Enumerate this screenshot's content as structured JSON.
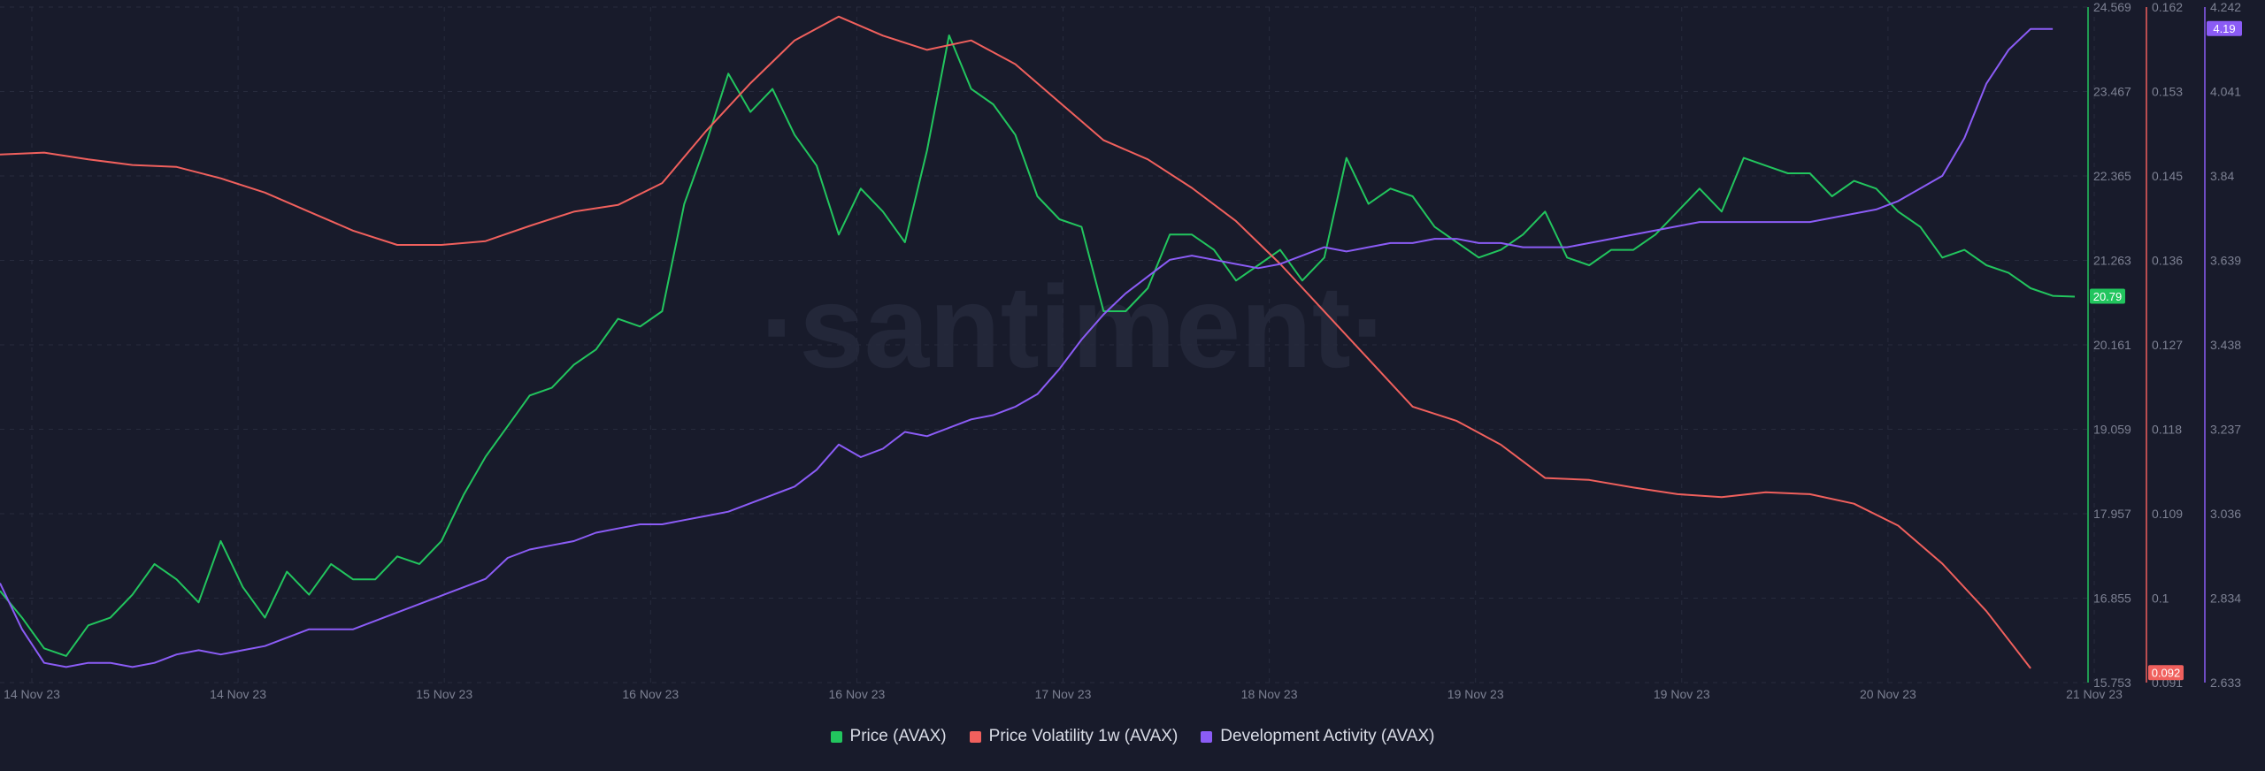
{
  "watermark": "·santiment·",
  "colors": {
    "background": "#181b2b",
    "grid": "#272b3d",
    "price": "#22c55e",
    "volatility": "#f0605d",
    "dev_activity": "#8b5cf6",
    "tick_text": "#7c8092"
  },
  "chart_data": {
    "type": "line",
    "grid": true,
    "legend_position": "bottom-center",
    "x_axis": {
      "ticks": [
        "14 Nov 23",
        "14 Nov 23",
        "15 Nov 23",
        "16 Nov 23",
        "16 Nov 23",
        "17 Nov 23",
        "18 Nov 23",
        "19 Nov 23",
        "19 Nov 23",
        "20 Nov 23",
        "21 Nov 23"
      ]
    },
    "axes": {
      "price": {
        "ticks": [
          "24.569",
          "23.467",
          "22.365",
          "21.263",
          "20.161",
          "19.059",
          "17.957",
          "16.855",
          "15.753"
        ],
        "range": [
          15.753,
          24.569
        ],
        "current_label": "20.79"
      },
      "volatility": {
        "ticks": [
          "0.162",
          "0.153",
          "0.145",
          "0.136",
          "0.127",
          "0.118",
          "0.109",
          "0.1",
          "0.091"
        ],
        "range": [
          0.091,
          0.162
        ],
        "current_label": "0.092"
      },
      "dev_activity": {
        "ticks": [
          "4.242",
          "4.041",
          "3.84",
          "3.639",
          "3.438",
          "3.237",
          "3.036",
          "2.834",
          "2.633"
        ],
        "range": [
          2.633,
          4.242
        ],
        "current_label": "4.19"
      }
    },
    "series": [
      {
        "name": "Price (AVAX)",
        "axis": "price",
        "color": "#22c55e",
        "points": [
          [
            0,
            16.95
          ],
          [
            1,
            16.6
          ],
          [
            2,
            16.2
          ],
          [
            3,
            16.1
          ],
          [
            4,
            16.5
          ],
          [
            5,
            16.6
          ],
          [
            6,
            16.9
          ],
          [
            7,
            17.3
          ],
          [
            8,
            17.1
          ],
          [
            9,
            16.8
          ],
          [
            10,
            17.6
          ],
          [
            11,
            17.0
          ],
          [
            12,
            16.6
          ],
          [
            13,
            17.2
          ],
          [
            14,
            16.9
          ],
          [
            15,
            17.3
          ],
          [
            16,
            17.1
          ],
          [
            17,
            17.1
          ],
          [
            18,
            17.4
          ],
          [
            19,
            17.3
          ],
          [
            20,
            17.6
          ],
          [
            21,
            18.2
          ],
          [
            22,
            18.7
          ],
          [
            23,
            19.1
          ],
          [
            24,
            19.5
          ],
          [
            25,
            19.6
          ],
          [
            26,
            19.9
          ],
          [
            27,
            20.1
          ],
          [
            28,
            20.5
          ],
          [
            29,
            20.4
          ],
          [
            30,
            20.6
          ],
          [
            31,
            22.0
          ],
          [
            32,
            22.8
          ],
          [
            33,
            23.7
          ],
          [
            34,
            23.2
          ],
          [
            35,
            23.5
          ],
          [
            36,
            22.9
          ],
          [
            37,
            22.5
          ],
          [
            38,
            21.6
          ],
          [
            39,
            22.2
          ],
          [
            40,
            21.9
          ],
          [
            41,
            21.5
          ],
          [
            42,
            22.7
          ],
          [
            43,
            24.2
          ],
          [
            44,
            23.5
          ],
          [
            45,
            23.3
          ],
          [
            46,
            22.9
          ],
          [
            47,
            22.1
          ],
          [
            48,
            21.8
          ],
          [
            49,
            21.7
          ],
          [
            50,
            20.6
          ],
          [
            51,
            20.6
          ],
          [
            52,
            20.9
          ],
          [
            53,
            21.6
          ],
          [
            54,
            21.6
          ],
          [
            55,
            21.4
          ],
          [
            56,
            21.0
          ],
          [
            57,
            21.2
          ],
          [
            58,
            21.4
          ],
          [
            59,
            21.0
          ],
          [
            60,
            21.3
          ],
          [
            61,
            22.6
          ],
          [
            62,
            22.0
          ],
          [
            63,
            22.2
          ],
          [
            64,
            22.1
          ],
          [
            65,
            21.7
          ],
          [
            66,
            21.5
          ],
          [
            67,
            21.3
          ],
          [
            68,
            21.4
          ],
          [
            69,
            21.6
          ],
          [
            70,
            21.9
          ],
          [
            71,
            21.3
          ],
          [
            72,
            21.2
          ],
          [
            73,
            21.4
          ],
          [
            74,
            21.4
          ],
          [
            75,
            21.6
          ],
          [
            76,
            21.9
          ],
          [
            77,
            22.2
          ],
          [
            78,
            21.9
          ],
          [
            79,
            22.6
          ],
          [
            80,
            22.5
          ],
          [
            81,
            22.4
          ],
          [
            82,
            22.4
          ],
          [
            83,
            22.1
          ],
          [
            84,
            22.3
          ],
          [
            85,
            22.2
          ],
          [
            86,
            21.9
          ],
          [
            87,
            21.7
          ],
          [
            88,
            21.3
          ],
          [
            89,
            21.4
          ],
          [
            90,
            21.2
          ],
          [
            91,
            21.1
          ],
          [
            92,
            20.9
          ],
          [
            93,
            20.8
          ],
          [
            94,
            20.79
          ]
        ]
      },
      {
        "name": "Price Volatility 1w (AVAX)",
        "axis": "volatility",
        "color": "#f0605d",
        "points": [
          [
            0,
            0.1465
          ],
          [
            2,
            0.1467
          ],
          [
            4,
            0.146
          ],
          [
            6,
            0.1454
          ],
          [
            8,
            0.1452
          ],
          [
            10,
            0.144
          ],
          [
            12,
            0.1425
          ],
          [
            14,
            0.1405
          ],
          [
            16,
            0.1385
          ],
          [
            18,
            0.137
          ],
          [
            20,
            0.137
          ],
          [
            22,
            0.1374
          ],
          [
            24,
            0.139
          ],
          [
            26,
            0.1405
          ],
          [
            28,
            0.1412
          ],
          [
            30,
            0.1435
          ],
          [
            32,
            0.149
          ],
          [
            34,
            0.154
          ],
          [
            36,
            0.1585
          ],
          [
            38,
            0.161
          ],
          [
            40,
            0.159
          ],
          [
            42,
            0.1575
          ],
          [
            44,
            0.1585
          ],
          [
            46,
            0.156
          ],
          [
            48,
            0.152
          ],
          [
            50,
            0.148
          ],
          [
            52,
            0.146
          ],
          [
            54,
            0.143
          ],
          [
            56,
            0.1395
          ],
          [
            58,
            0.135
          ],
          [
            60,
            0.13
          ],
          [
            62,
            0.125
          ],
          [
            64,
            0.12
          ],
          [
            66,
            0.1185
          ],
          [
            68,
            0.116
          ],
          [
            70,
            0.1125
          ],
          [
            72,
            0.1123
          ],
          [
            74,
            0.1115
          ],
          [
            76,
            0.1108
          ],
          [
            78,
            0.1105
          ],
          [
            80,
            0.111
          ],
          [
            82,
            0.1108
          ],
          [
            84,
            0.1098
          ],
          [
            86,
            0.1075
          ],
          [
            88,
            0.1035
          ],
          [
            90,
            0.0985
          ],
          [
            92,
            0.0925
          ]
        ]
      },
      {
        "name": "Development Activity (AVAX)",
        "axis": "dev_activity",
        "color": "#8b5cf6",
        "points": [
          [
            0,
            2.87
          ],
          [
            1,
            2.76
          ],
          [
            2,
            2.68
          ],
          [
            3,
            2.67
          ],
          [
            4,
            2.68
          ],
          [
            5,
            2.68
          ],
          [
            6,
            2.67
          ],
          [
            7,
            2.68
          ],
          [
            8,
            2.7
          ],
          [
            9,
            2.71
          ],
          [
            10,
            2.7
          ],
          [
            11,
            2.71
          ],
          [
            12,
            2.72
          ],
          [
            13,
            2.74
          ],
          [
            14,
            2.76
          ],
          [
            15,
            2.76
          ],
          [
            16,
            2.76
          ],
          [
            17,
            2.78
          ],
          [
            18,
            2.8
          ],
          [
            19,
            2.82
          ],
          [
            20,
            2.84
          ],
          [
            21,
            2.86
          ],
          [
            22,
            2.88
          ],
          [
            23,
            2.93
          ],
          [
            24,
            2.95
          ],
          [
            25,
            2.96
          ],
          [
            26,
            2.97
          ],
          [
            27,
            2.99
          ],
          [
            28,
            3.0
          ],
          [
            29,
            3.01
          ],
          [
            30,
            3.01
          ],
          [
            31,
            3.02
          ],
          [
            32,
            3.03
          ],
          [
            33,
            3.04
          ],
          [
            34,
            3.06
          ],
          [
            35,
            3.08
          ],
          [
            36,
            3.1
          ],
          [
            37,
            3.14
          ],
          [
            38,
            3.2
          ],
          [
            39,
            3.17
          ],
          [
            40,
            3.19
          ],
          [
            41,
            3.23
          ],
          [
            42,
            3.22
          ],
          [
            43,
            3.24
          ],
          [
            44,
            3.26
          ],
          [
            45,
            3.27
          ],
          [
            46,
            3.29
          ],
          [
            47,
            3.32
          ],
          [
            48,
            3.38
          ],
          [
            49,
            3.45
          ],
          [
            50,
            3.51
          ],
          [
            51,
            3.56
          ],
          [
            52,
            3.6
          ],
          [
            53,
            3.64
          ],
          [
            54,
            3.65
          ],
          [
            55,
            3.64
          ],
          [
            56,
            3.63
          ],
          [
            57,
            3.62
          ],
          [
            58,
            3.63
          ],
          [
            59,
            3.65
          ],
          [
            60,
            3.67
          ],
          [
            61,
            3.66
          ],
          [
            62,
            3.67
          ],
          [
            63,
            3.68
          ],
          [
            64,
            3.68
          ],
          [
            65,
            3.69
          ],
          [
            66,
            3.69
          ],
          [
            67,
            3.68
          ],
          [
            68,
            3.68
          ],
          [
            69,
            3.67
          ],
          [
            70,
            3.67
          ],
          [
            71,
            3.67
          ],
          [
            72,
            3.68
          ],
          [
            73,
            3.69
          ],
          [
            74,
            3.7
          ],
          [
            75,
            3.71
          ],
          [
            76,
            3.72
          ],
          [
            77,
            3.73
          ],
          [
            78,
            3.73
          ],
          [
            79,
            3.73
          ],
          [
            80,
            3.73
          ],
          [
            81,
            3.73
          ],
          [
            82,
            3.73
          ],
          [
            83,
            3.74
          ],
          [
            84,
            3.75
          ],
          [
            85,
            3.76
          ],
          [
            86,
            3.78
          ],
          [
            87,
            3.81
          ],
          [
            88,
            3.84
          ],
          [
            89,
            3.93
          ],
          [
            90,
            4.06
          ],
          [
            91,
            4.14
          ],
          [
            92,
            4.19
          ],
          [
            93,
            4.19
          ]
        ]
      }
    ]
  }
}
